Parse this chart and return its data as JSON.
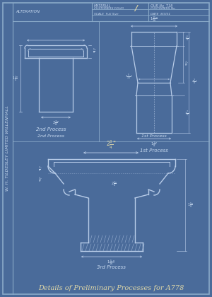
{
  "bg_color": "#4a6b9a",
  "bg_color2": "#5070a8",
  "line_color": "#b8cce8",
  "text_color": "#c8daf0",
  "title_color": "#e0d8a8",
  "border_color": "#8aaac8",
  "title": "Details of Preliminary Processes for A778",
  "side_text": "W. H. TILDESLEY LIMITED WILLENHALL",
  "label1": "2nd Process",
  "label2": "1st Process",
  "label3": "3rd Process",
  "figsize": [
    3.0,
    4.2
  ],
  "dpi": 100
}
